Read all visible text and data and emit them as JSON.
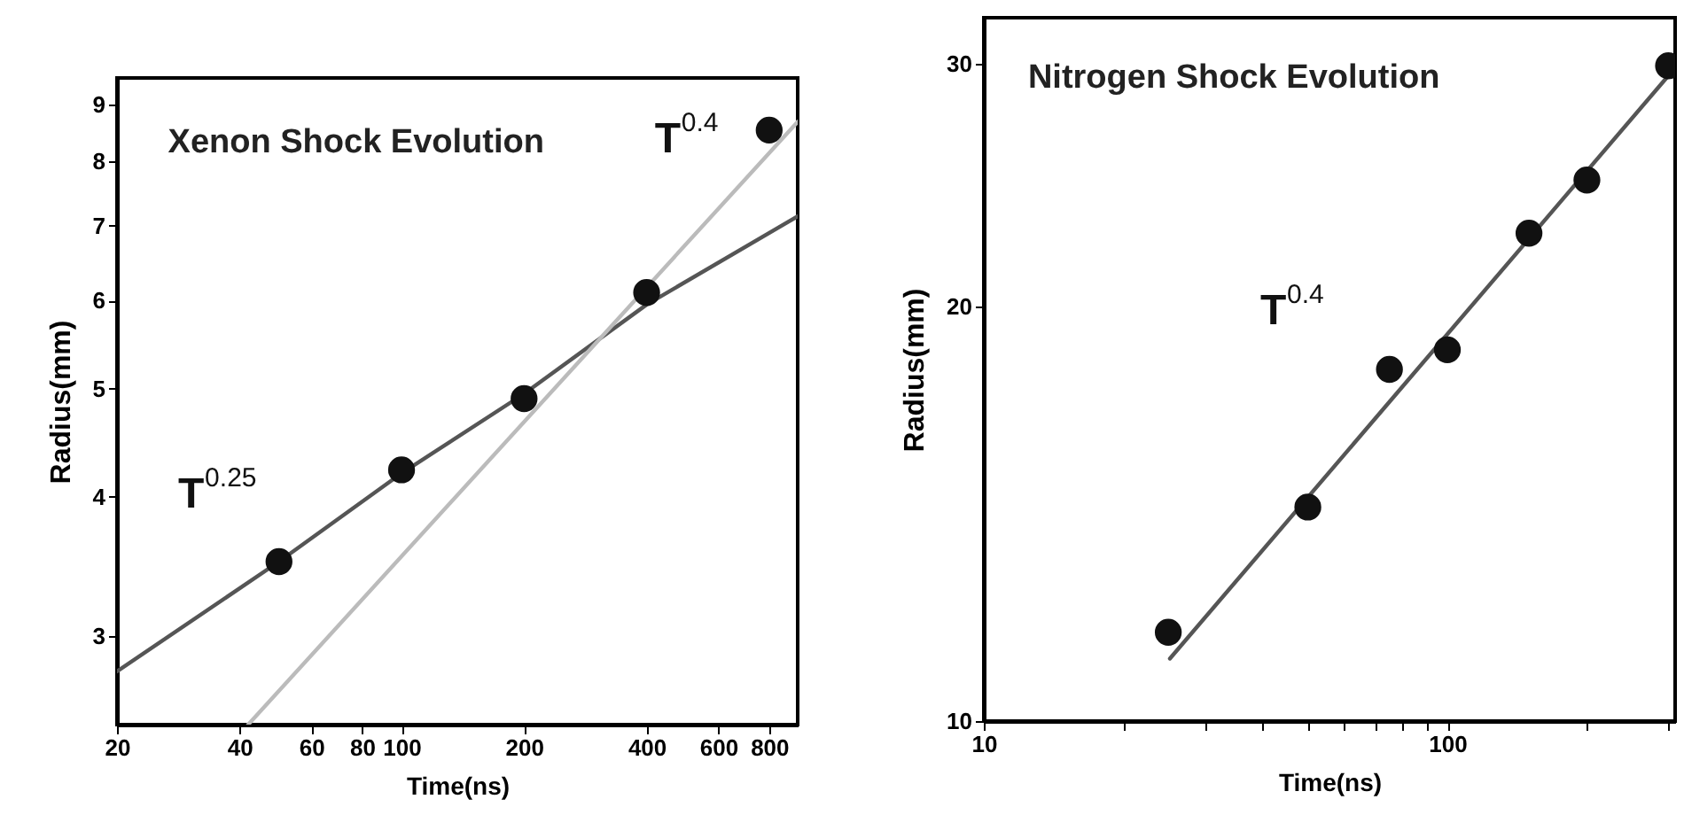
{
  "chart_data": [
    {
      "type": "scatter",
      "title": "Xenon Shock Evolution",
      "xlabel": "Time(ns)",
      "ylabel": "Radius(mm)",
      "log": "xy",
      "grid": false,
      "xlim": [
        20,
        940
      ],
      "ylim": [
        2.5,
        9.5
      ],
      "xticks": [
        20,
        40,
        60,
        80,
        100,
        200,
        400,
        600,
        800
      ],
      "yticks": [
        3,
        4,
        5,
        6,
        7,
        8,
        9
      ],
      "annotations": [
        "T$^{0.4}$",
        "T$^{0.25}$"
      ],
      "series": [
        {
          "type": "line",
          "color": "#555555",
          "x": [
            20,
            50,
            100,
            200,
            400,
            940
          ],
          "values": [
            2.79,
            3.5,
            4.2,
            4.95,
            5.95,
            7.14
          ]
        },
        {
          "type": "line",
          "color": "#bbbbbb",
          "x": [
            42,
            940
          ],
          "values": [
            2.5,
            8.68
          ]
        },
        {
          "type": "scatter",
          "marker": "circle",
          "color": "#111111",
          "x": [
            50,
            100,
            200,
            400,
            800
          ],
          "values": [
            3.5,
            4.23,
            4.9,
            6.1,
            8.53
          ]
        }
      ]
    },
    {
      "type": "scatter",
      "title": "Nitrogen Shock Evolution",
      "xlabel": "Time(ns)",
      "ylabel": "Radius(mm)",
      "log": "xy",
      "grid": false,
      "xlim": [
        10,
        310
      ],
      "ylim": [
        10,
        32.4
      ],
      "xticks": [
        10,
        {
          "value": 20,
          "label": null
        },
        {
          "value": 30,
          "label": null
        },
        {
          "value": 40,
          "label": null
        },
        {
          "value": 50,
          "label": null
        },
        {
          "value": 60,
          "label": null
        },
        {
          "value": 70,
          "label": null
        },
        {
          "value": 80,
          "label": null
        },
        {
          "value": 90,
          "label": null
        },
        100,
        {
          "value": 200,
          "label": null
        },
        {
          "value": 300,
          "label": null
        }
      ],
      "yticks": [
        10,
        20,
        30
      ],
      "annotations": [
        "T$^{0.4}$"
      ],
      "series": [
        {
          "type": "line",
          "color": "#555555",
          "x": [
            25.2,
            310
          ],
          "values": [
            11.1,
            29.8
          ]
        },
        {
          "type": "scatter",
          "marker": "circle",
          "color": "#111111",
          "x": [
            25,
            50,
            75,
            100,
            150,
            200,
            300
          ],
          "values": [
            11.6,
            14.3,
            18.0,
            18.6,
            22.6,
            24.7,
            29.9
          ]
        }
      ]
    }
  ]
}
